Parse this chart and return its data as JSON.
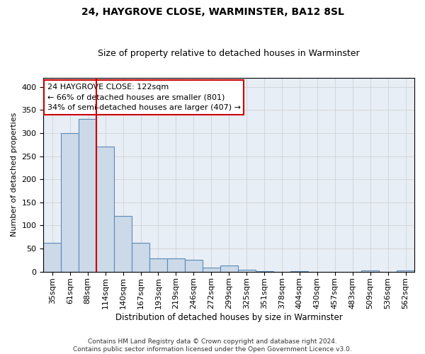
{
  "title": "24, HAYGROVE CLOSE, WARMINSTER, BA12 8SL",
  "subtitle": "Size of property relative to detached houses in Warminster",
  "xlabel": "Distribution of detached houses by size in Warminster",
  "ylabel": "Number of detached properties",
  "bar_color": "#ccd9e8",
  "bar_edge_color": "#5a8ab8",
  "bar_edge_width": 0.8,
  "categories": [
    "35sqm",
    "61sqm",
    "88sqm",
    "114sqm",
    "140sqm",
    "167sqm",
    "193sqm",
    "219sqm",
    "246sqm",
    "272sqm",
    "299sqm",
    "325sqm",
    "351sqm",
    "378sqm",
    "404sqm",
    "430sqm",
    "457sqm",
    "483sqm",
    "509sqm",
    "536sqm",
    "562sqm"
  ],
  "values": [
    62,
    300,
    330,
    270,
    120,
    63,
    28,
    28,
    25,
    8,
    13,
    4,
    1,
    0,
    1,
    0,
    0,
    0,
    3,
    0,
    2
  ],
  "ylim": [
    0,
    420
  ],
  "yticks": [
    0,
    50,
    100,
    150,
    200,
    250,
    300,
    350,
    400
  ],
  "vline_x": 2.5,
  "vline_color": "#cc0000",
  "annotation_text": "24 HAYGROVE CLOSE: 122sqm\n← 66% of detached houses are smaller (801)\n34% of semi-detached houses are larger (407) →",
  "annotation_box_color": "#ffffff",
  "annotation_box_edge_color": "#cc0000",
  "footnote": "Contains HM Land Registry data © Crown copyright and database right 2024.\nContains public sector information licensed under the Open Government Licence v3.0.",
  "background_color": "#ffffff",
  "grid_color": "#cccccc",
  "title_fontsize": 10,
  "subtitle_fontsize": 9,
  "ylabel_fontsize": 8,
  "xlabel_fontsize": 8.5,
  "tick_fontsize": 8,
  "annotation_fontsize": 8,
  "footnote_fontsize": 6.5
}
